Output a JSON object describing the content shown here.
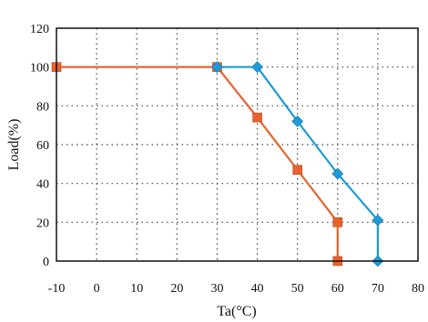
{
  "chart_data": {
    "type": "line",
    "xlabel": "Ta(°C)",
    "ylabel": "Load(%)",
    "xlim": [
      -10,
      80
    ],
    "ylim": [
      0,
      120
    ],
    "x_ticks": [
      -10,
      0,
      10,
      20,
      30,
      40,
      50,
      60,
      70,
      80
    ],
    "y_ticks": [
      0,
      20,
      40,
      60,
      80,
      100,
      120
    ],
    "grid": true,
    "grid_style": "dotted",
    "series": [
      {
        "color": "#e8622c",
        "marker": "square",
        "points": [
          [
            -10,
            100
          ],
          [
            30,
            100
          ],
          [
            40,
            74
          ],
          [
            50,
            47
          ],
          [
            60,
            20
          ],
          [
            60,
            0
          ]
        ]
      },
      {
        "color": "#1e9ad6",
        "marker": "diamond",
        "points": [
          [
            30,
            100
          ],
          [
            40,
            100
          ],
          [
            50,
            72
          ],
          [
            60,
            45
          ],
          [
            70,
            21
          ],
          [
            70,
            0
          ]
        ]
      }
    ]
  }
}
